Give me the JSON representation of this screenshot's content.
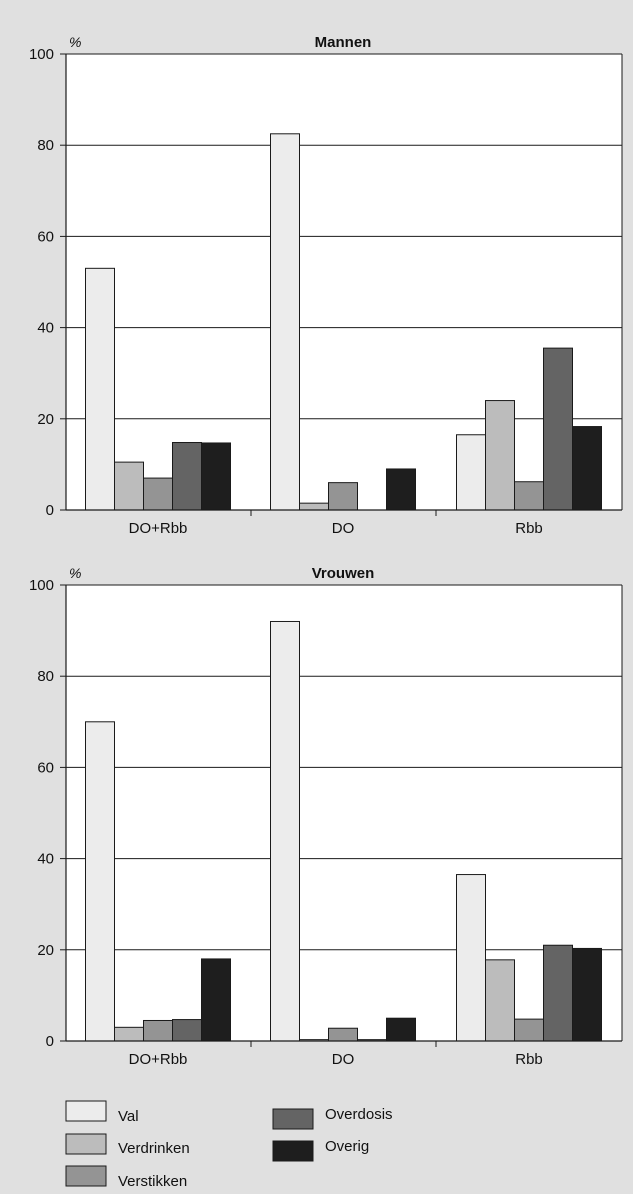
{
  "chart_data": [
    {
      "type": "bar",
      "title": "Mannen",
      "unit_label": "%",
      "categories": [
        "DO+Rbb",
        "DO",
        "Rbb"
      ],
      "ylim": [
        0,
        100
      ],
      "yticks": [
        0,
        20,
        40,
        60,
        80,
        100
      ],
      "grid": true,
      "series": [
        {
          "name": "Val",
          "color": "#ececec",
          "values": [
            53,
            82.5,
            16.5
          ]
        },
        {
          "name": "Verdrinken",
          "color": "#bcbcbc",
          "values": [
            10.5,
            1.5,
            24
          ]
        },
        {
          "name": "Verstikken",
          "color": "#949494",
          "values": [
            7,
            6,
            6.2
          ]
        },
        {
          "name": "Overdosis",
          "color": "#646464",
          "values": [
            14.8,
            0,
            35.5
          ]
        },
        {
          "name": "Overig",
          "color": "#1e1e1e",
          "values": [
            14.7,
            9,
            18.3
          ]
        }
      ]
    },
    {
      "type": "bar",
      "title": "Vrouwen",
      "unit_label": "%",
      "categories": [
        "DO+Rbb",
        "DO",
        "Rbb"
      ],
      "ylim": [
        0,
        100
      ],
      "yticks": [
        0,
        20,
        40,
        60,
        80,
        100
      ],
      "grid": true,
      "series": [
        {
          "name": "Val",
          "color": "#ececec",
          "values": [
            70,
            92,
            36.5
          ]
        },
        {
          "name": "Verdrinken",
          "color": "#bcbcbc",
          "values": [
            3,
            0.3,
            17.8
          ]
        },
        {
          "name": "Verstikken",
          "color": "#949494",
          "values": [
            4.5,
            2.8,
            4.8
          ]
        },
        {
          "name": "Overdosis",
          "color": "#646464",
          "values": [
            4.7,
            0.3,
            21
          ]
        },
        {
          "name": "Overig",
          "color": "#1e1e1e",
          "values": [
            18,
            5,
            20.3
          ]
        }
      ]
    }
  ],
  "legend": {
    "placement": "bottom",
    "items": [
      {
        "label": "Val",
        "color": "#ececec"
      },
      {
        "label": "Verdrinken",
        "color": "#bcbcbc"
      },
      {
        "label": "Verstikken",
        "color": "#949494"
      },
      {
        "label": "Overdosis",
        "color": "#646464"
      },
      {
        "label": "Overig",
        "color": "#1e1e1e"
      }
    ]
  }
}
